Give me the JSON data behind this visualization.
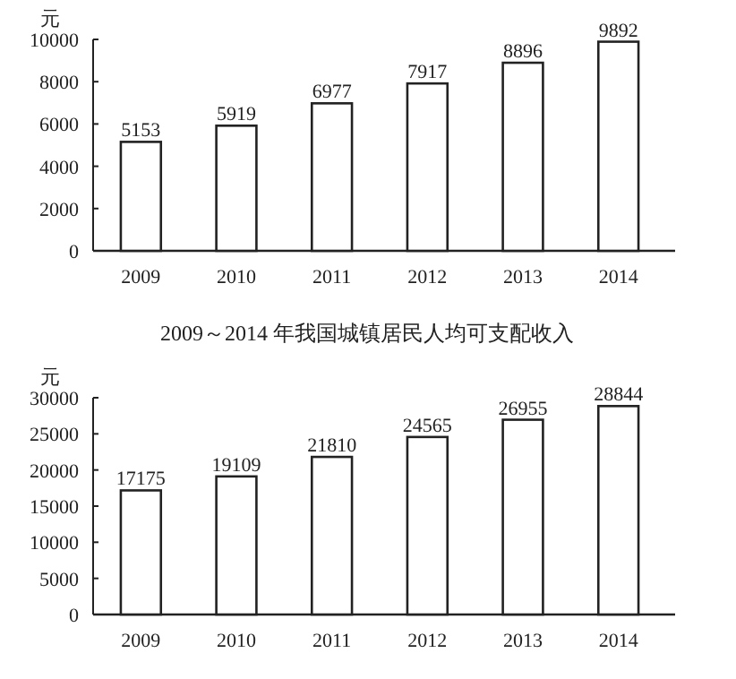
{
  "chart_data": [
    {
      "type": "bar",
      "ylabel": "元",
      "categories": [
        "2009",
        "2010",
        "2011",
        "2012",
        "2013",
        "2014"
      ],
      "values": [
        5153,
        5919,
        6977,
        7917,
        8896,
        9892
      ],
      "color": "#ffffff",
      "ylim": [
        0,
        10000
      ],
      "yticks": [
        0,
        2000,
        4000,
        6000,
        8000,
        10000
      ],
      "data_labels": true,
      "grid": false
    },
    {
      "type": "bar",
      "title": "2009～2014 年我国城镇居民人均可支配收入",
      "ylabel": "元",
      "categories": [
        "2009",
        "2010",
        "2011",
        "2012",
        "2013",
        "2014"
      ],
      "values": [
        17175,
        19109,
        21810,
        24565,
        26955,
        28844
      ],
      "color": "#ffffff",
      "ylim": [
        0,
        30000
      ],
      "yticks": [
        0,
        5000,
        10000,
        15000,
        20000,
        25000,
        30000
      ],
      "data_labels": true,
      "grid": false
    }
  ]
}
